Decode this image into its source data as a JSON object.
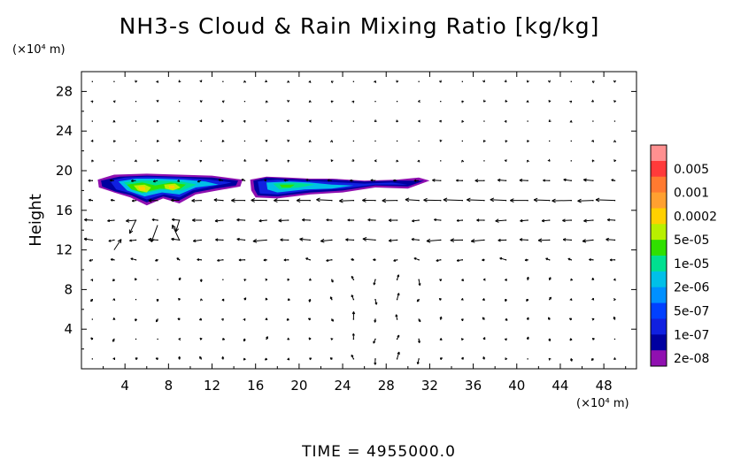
{
  "chart_data": {
    "type": "contour",
    "title": "NH3-s Cloud & Rain Mixing Ratio [kg/kg]",
    "ylabel": "Height",
    "yunit": "(×10⁴ m)",
    "xunit": "(×10⁴ m)",
    "xticks": [
      4,
      8,
      12,
      16,
      20,
      24,
      28,
      32,
      36,
      40,
      44,
      48
    ],
    "yticks": [
      4,
      8,
      12,
      16,
      20,
      24,
      28
    ],
    "xlim": [
      0,
      51
    ],
    "ylim": [
      0,
      30
    ],
    "colorbar": {
      "labels": [
        "0.005",
        "0.001",
        "0.0002",
        "5e-05",
        "1e-05",
        "2e-06",
        "5e-07",
        "1e-07",
        "2e-08"
      ],
      "colors": [
        "#ff3a3a",
        "#ff7a30",
        "#ffa030",
        "#ffd000",
        "#b8f000",
        "#30e000",
        "#00e090",
        "#00c0e8",
        "#0090ff",
        "#0040ff",
        "#1020e0",
        "#0000a0",
        "#9010b0"
      ],
      "top_color": "#ff9090"
    },
    "series": [
      {
        "type": "cloud_contour",
        "regions": [
          {
            "x": [
              1.5,
              14.8
            ],
            "y_min": 16.5,
            "y_max": 19.6,
            "max_level": "0.0002"
          },
          {
            "x": [
              15.5,
              32.0
            ],
            "y_min": 17.0,
            "y_max": 19.4,
            "max_level": "2e-06"
          }
        ]
      },
      {
        "type": "wind_vectors",
        "jet_level": 17,
        "secondary_level": 14,
        "flow": "westward jet near 17 and 14 (×10⁴ m); weak vectors elsewhere"
      }
    ],
    "footer": "TIME = 4955000.0"
  }
}
